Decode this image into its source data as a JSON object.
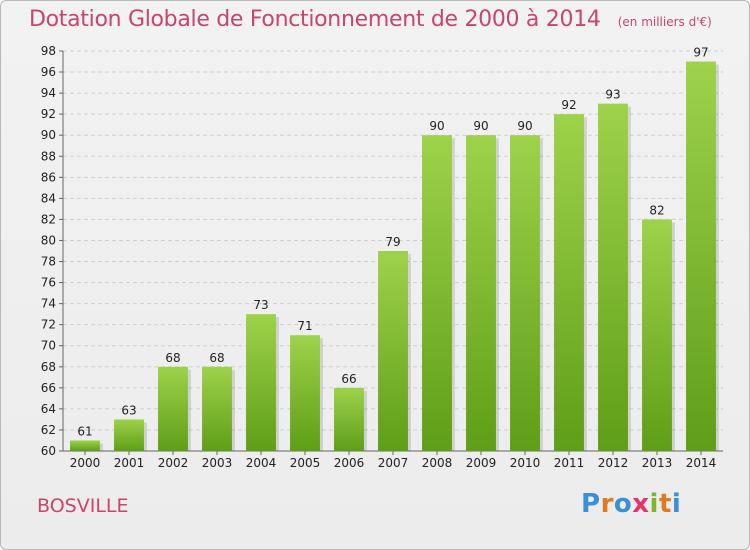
{
  "header": {
    "title": "Dotation Globale de Fonctionnement de 2000 à 2014",
    "subtitle": "(en milliers d'€)"
  },
  "footer": {
    "commune": "BOSVILLE",
    "logo": {
      "letters": [
        "P",
        "r",
        "o",
        "x",
        "i",
        "t",
        "i"
      ],
      "colors": [
        "#3a8fd6",
        "#e07a22",
        "#3a8fd6",
        "#e8336a",
        "#79b82a",
        "#e07a22",
        "#3a8fd6"
      ]
    }
  },
  "colors": {
    "bar_light": "#9ed24b",
    "bar_dark": "#5f9e18",
    "title": "#c8456b",
    "grid": "#cfcfcf"
  },
  "chart_data": {
    "type": "bar",
    "categories": [
      "2000",
      "2001",
      "2002",
      "2003",
      "2004",
      "2005",
      "2006",
      "2007",
      "2008",
      "2009",
      "2010",
      "2011",
      "2012",
      "2013",
      "2014"
    ],
    "values": [
      61,
      63,
      68,
      68,
      73,
      71,
      66,
      79,
      90,
      90,
      90,
      92,
      93,
      82,
      97
    ],
    "ylim": [
      60,
      98
    ],
    "yticks": [
      60,
      62,
      64,
      66,
      68,
      70,
      72,
      74,
      76,
      78,
      80,
      82,
      84,
      86,
      88,
      90,
      92,
      94,
      96,
      98
    ],
    "grid": true,
    "xlabel": "",
    "ylabel": ""
  }
}
